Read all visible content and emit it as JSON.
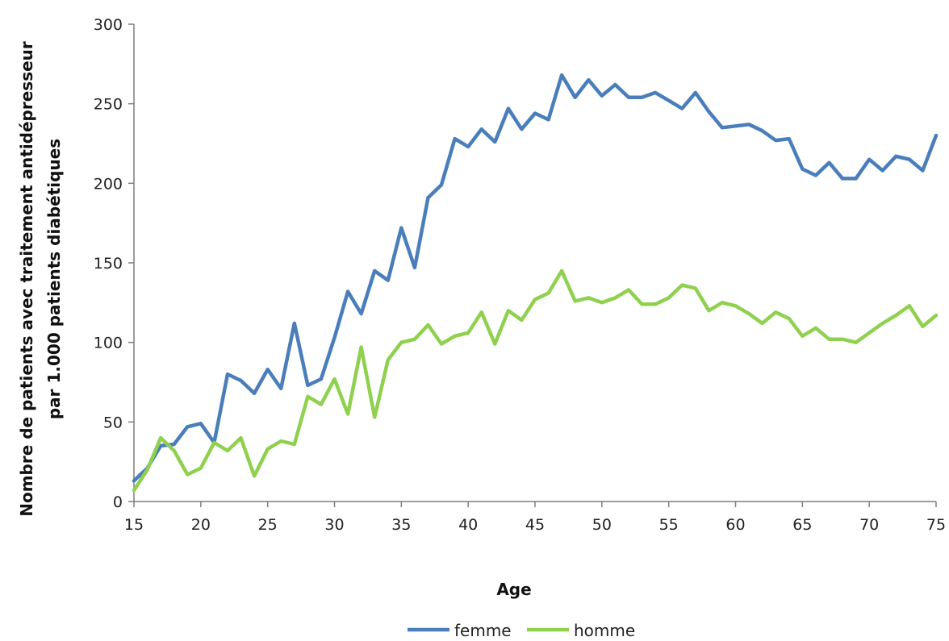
{
  "chart_data": {
    "type": "line",
    "title": "",
    "xlabel": "Age",
    "ylabel_lines": [
      "Nombre de patients avec traitement antidépresseur",
      "par 1.000  patients diabétiques"
    ],
    "xlim": [
      15,
      75
    ],
    "ylim": [
      0,
      300
    ],
    "x_ticks": [
      15,
      20,
      25,
      30,
      35,
      40,
      45,
      50,
      55,
      60,
      65,
      70,
      75
    ],
    "y_ticks": [
      0,
      50,
      100,
      150,
      200,
      250,
      300
    ],
    "grid": false,
    "legend_position": "bottom",
    "x": [
      15,
      16,
      17,
      18,
      19,
      20,
      21,
      22,
      23,
      24,
      25,
      26,
      27,
      28,
      29,
      30,
      31,
      32,
      33,
      34,
      35,
      36,
      37,
      38,
      39,
      40,
      41,
      42,
      43,
      44,
      45,
      46,
      47,
      48,
      49,
      50,
      51,
      52,
      53,
      54,
      55,
      56,
      57,
      58,
      59,
      60,
      61,
      62,
      63,
      64,
      65,
      66,
      67,
      68,
      69,
      70,
      71,
      72,
      73,
      74,
      75
    ],
    "series": [
      {
        "name": "femme",
        "color": "#4a7ebb",
        "values": [
          13,
          21,
          35,
          36,
          47,
          49,
          37,
          80,
          76,
          68,
          83,
          71,
          112,
          73,
          77,
          103,
          132,
          118,
          145,
          139,
          172,
          147,
          191,
          199,
          228,
          223,
          234,
          226,
          247,
          234,
          244,
          240,
          268,
          254,
          265,
          255,
          262,
          254,
          254,
          257,
          252,
          247,
          257,
          245,
          235,
          236,
          237,
          233,
          227,
          228,
          209,
          205,
          213,
          203,
          203,
          215,
          208,
          217,
          215,
          208,
          230
        ]
      },
      {
        "name": "homme",
        "color": "#8fd14f",
        "values": [
          7,
          20,
          40,
          32,
          17,
          21,
          37,
          32,
          40,
          16,
          33,
          38,
          36,
          66,
          61,
          77,
          55,
          97,
          53,
          89,
          100,
          102,
          111,
          99,
          104,
          106,
          119,
          99,
          120,
          114,
          127,
          131,
          145,
          126,
          128,
          125,
          128,
          133,
          124,
          124,
          128,
          136,
          134,
          120,
          125,
          123,
          118,
          112,
          119,
          115,
          104,
          109,
          102,
          102,
          100,
          106,
          112,
          117,
          123,
          110,
          117
        ]
      }
    ]
  }
}
